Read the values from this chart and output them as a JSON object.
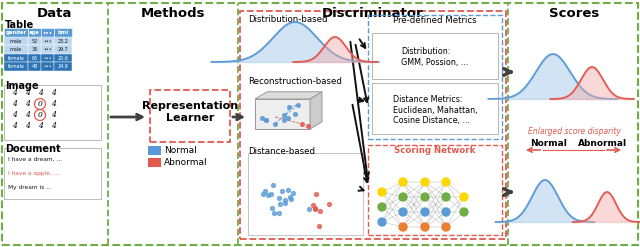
{
  "title_data": "Data",
  "title_methods": "Methods",
  "title_discriminator": "Discriminator",
  "title_scores": "Scores",
  "table_header": [
    "gender",
    "age",
    "•••",
    "bmi"
  ],
  "table_rows": [
    [
      "male",
      "52",
      "•••",
      "23.2"
    ],
    [
      "male",
      "36",
      "•••",
      "29.7"
    ],
    [
      "female",
      "65",
      "•••",
      "20.6"
    ],
    [
      "female",
      "48",
      "•••",
      "24.9"
    ]
  ],
  "table_highlight_rows": [
    2,
    3
  ],
  "repr_learner_text": "Representation\nLearner",
  "dist_based_text": "Distribution-based",
  "recon_based_text": "Reconstruction-based",
  "dist_based2_text": "Distance-based",
  "predefined_text": "Pre-defined Metrics",
  "distribution_text": "Distribution:\nGMM, Possion, ...",
  "distance_text": "Distance Metrics:\nEuclidean, Mahattan,\nCosine Distance, ...",
  "scoring_network_text": "Scoring Network",
  "legend_normal": "Normal",
  "legend_abnormal": "Abnormal",
  "enlarged_text": "Enlarged score disparity",
  "normal_text": "Normal",
  "abnormal_text": "Abnormal",
  "image_label": "Image",
  "document_label": "Document",
  "table_label": "Table",
  "doc_lines": [
    "I have a dream, ...",
    "I have a apple, ...",
    "My dream is ..."
  ],
  "bg_color": "#ffffff",
  "blue_color": "#5B9BD5",
  "red_color": "#E05A4F",
  "light_blue": "#9DC3E6",
  "light_red": "#F4AAAA",
  "green_dashed_color": "#70AD47",
  "red_dashed_color": "#E05A4F",
  "gray_arrow": "#404040",
  "table_header_bg": "#5B9BD5",
  "table_row_bg": "#BDD7EE",
  "table_highlight_bg": "#2E75B6",
  "nn_colors": [
    "#FFD700",
    "#70AD47",
    "#5B9BD5",
    "#ED7D31",
    "#7030A0"
  ]
}
